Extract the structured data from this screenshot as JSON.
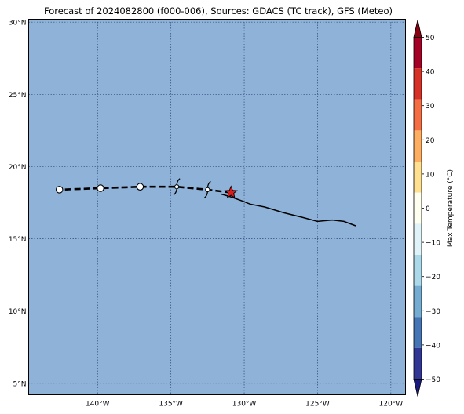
{
  "title": "Forecast of 2024082800 (f000-006), Sources: GDACS (TC track), GFS (Meteo)",
  "map": {
    "ocean_color": "#8fb2d8",
    "lon_range": [
      -144.7,
      -119.0
    ],
    "lat_range": [
      4.2,
      30.2
    ],
    "lon_ticks": [
      {
        "value": -140,
        "label": "140°W"
      },
      {
        "value": -135,
        "label": "135°W"
      },
      {
        "value": -130,
        "label": "130°W"
      },
      {
        "value": -125,
        "label": "125°W"
      },
      {
        "value": -120,
        "label": "120°W"
      }
    ],
    "lat_ticks": [
      {
        "value": 30,
        "label": "30°N"
      },
      {
        "value": 25,
        "label": "25°N"
      },
      {
        "value": 20,
        "label": "20°N"
      },
      {
        "value": 15,
        "label": "15°N"
      },
      {
        "value": 10,
        "label": "10°N"
      },
      {
        "value": 5,
        "label": "5°N"
      }
    ]
  },
  "track": {
    "past": [
      [
        -122.4,
        15.9
      ],
      [
        -123.2,
        16.2
      ],
      [
        -124.0,
        16.3
      ],
      [
        -125.0,
        16.2
      ],
      [
        -126.1,
        16.5
      ],
      [
        -127.3,
        16.8
      ],
      [
        -128.6,
        17.2
      ],
      [
        -129.6,
        17.4
      ],
      [
        -130.1,
        17.6
      ],
      [
        -130.9,
        17.9
      ],
      [
        -131.6,
        18.1
      ]
    ],
    "forecast": [
      [
        -130.9,
        18.2
      ],
      [
        -132.5,
        18.4
      ],
      [
        -134.6,
        18.6
      ],
      [
        -137.1,
        18.6
      ],
      [
        -139.8,
        18.5
      ],
      [
        -142.6,
        18.4
      ]
    ],
    "current_position": [
      -130.9,
      18.2
    ],
    "forecast_points": [
      [
        -139.8,
        18.5
      ],
      [
        -137.1,
        18.6
      ],
      [
        -142.6,
        18.4
      ]
    ],
    "cyclone_symbols": [
      [
        -134.6,
        18.6
      ],
      [
        -132.5,
        18.4
      ]
    ]
  },
  "colorbar": {
    "label": "Max Temperature (°C)",
    "ticks": [
      "50",
      "40",
      "30",
      "20",
      "10",
      "0",
      "−10",
      "−20",
      "−30",
      "−40",
      "−50"
    ],
    "tick_values": [
      50,
      40,
      30,
      20,
      10,
      0,
      -10,
      -20,
      -30,
      -40,
      -50
    ],
    "colors_top_to_bottom": [
      "#a50026",
      "#d73027",
      "#f46d43",
      "#fdae61",
      "#fee090",
      "#ffffef",
      "#e0f3f8",
      "#abd9e9",
      "#74add1",
      "#4575b4",
      "#313695"
    ],
    "extend_top_color": "#8b0010",
    "extend_bottom_color": "#1a1a7e"
  }
}
